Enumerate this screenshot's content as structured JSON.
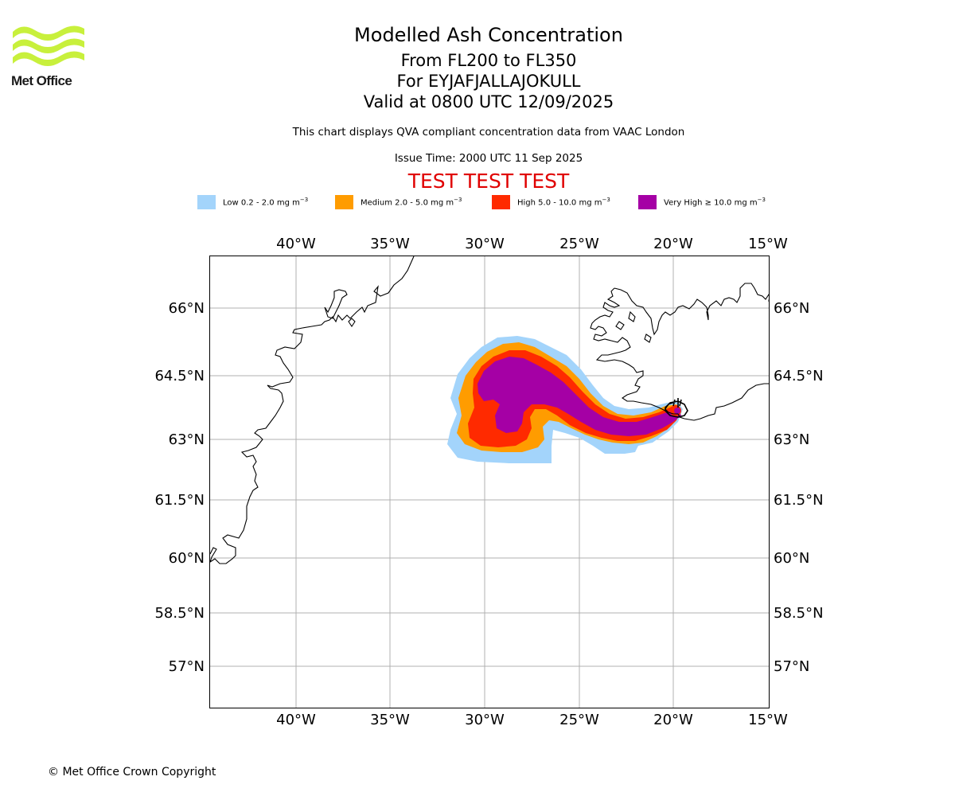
{
  "header": {
    "logo_text": "Met Office",
    "title": "Modelled Ash Concentration",
    "levels": "From FL200 to FL350",
    "volcano": "For EYJAFJALLAJOKULL",
    "valid": "Valid at 0800 UTC 12/09/2025",
    "description": "This chart displays QVA compliant concentration data from VAAC London",
    "issue": "Issue Time: 2000 UTC 11 Sep 2025",
    "test_banner": "TEST TEST TEST"
  },
  "legend": [
    {
      "name": "Low 0.2 - 2.0 mg m",
      "exp": "−3",
      "color": "#a3d4fb"
    },
    {
      "name": "Medium 2.0 - 5.0 mg m",
      "exp": "−3",
      "color": "#ff9c00"
    },
    {
      "name": "High 5.0 - 10.0 mg m",
      "exp": "−3",
      "color": "#ff2a00"
    },
    {
      "name": "Very High  ≥  10.0 mg m",
      "exp": "−3",
      "color": "#a500a5"
    }
  ],
  "map": {
    "lon_labels": [
      "40°W",
      "35°W",
      "30°W",
      "25°W",
      "20°W",
      "15°W"
    ],
    "lat_labels": [
      "66°N",
      "64.5°N",
      "63°N",
      "61.5°N",
      "60°N",
      "58.5°N",
      "57°N"
    ],
    "coastline_color": "#000000",
    "gridline_color": "#b0b0b0"
  },
  "footer": {
    "copyright": "© Met Office Crown Copyright"
  }
}
